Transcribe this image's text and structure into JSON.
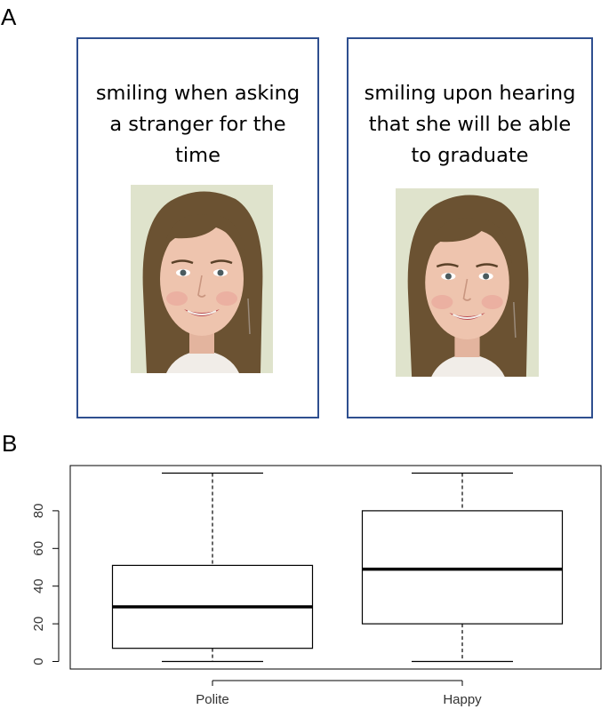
{
  "panels": {
    "a_label": "A",
    "b_label": "B"
  },
  "stimuli": [
    {
      "caption_lines": [
        "smiling when asking",
        "a stranger for the",
        "time"
      ],
      "photo": "smiling-woman-face-photo"
    },
    {
      "caption_lines": [
        "smiling upon hearing",
        "that she will be able",
        "to graduate"
      ],
      "photo": "smiling-woman-face-photo"
    }
  ],
  "colors": {
    "card_border": "#2f4f8f"
  },
  "chart_data": {
    "type": "boxplot",
    "categories": [
      "Polite",
      "Happy"
    ],
    "boxes": [
      {
        "category": "Polite",
        "min": 0,
        "q1": 7,
        "median": 29,
        "q3": 51,
        "max": 100
      },
      {
        "category": "Happy",
        "min": 0,
        "q1": 20,
        "median": 49,
        "q3": 80,
        "max": 100
      }
    ],
    "yticks": [
      0,
      20,
      40,
      60,
      80
    ],
    "ylim": [
      -4,
      104
    ]
  }
}
